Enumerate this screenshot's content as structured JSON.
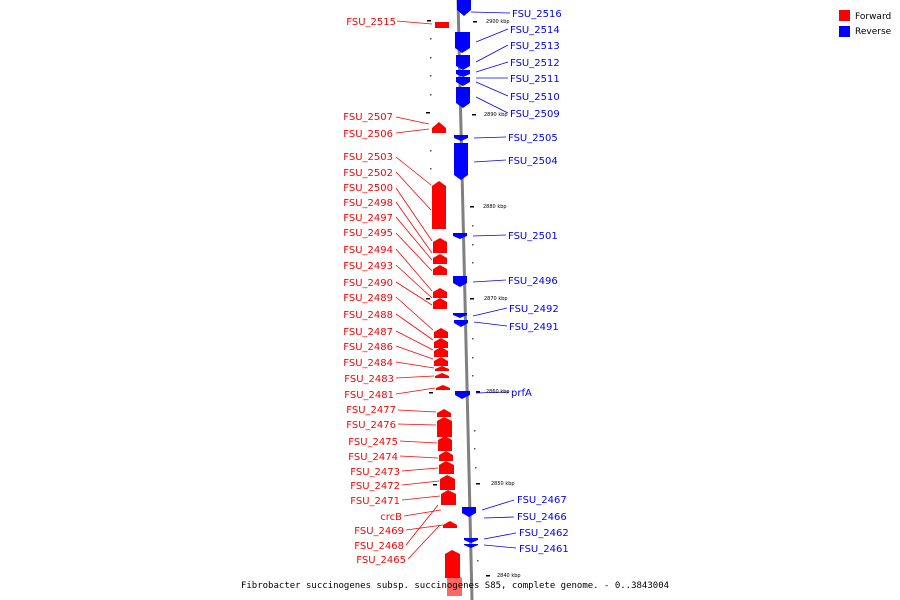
{
  "legend": {
    "forward": {
      "label": "Forward",
      "color": "#ff0000"
    },
    "reverse": {
      "label": "Reverse",
      "color": "#0000ff"
    }
  },
  "colors": {
    "forward": "#ff0000",
    "reverse": "#0000ff",
    "axis": "#808080"
  },
  "caption": "Fibrobacter succinogenes subsp. succinogenes S85, complete genome. - 0..3843004",
  "ticks": [
    "2900 kbp",
    "2890 kbp",
    "2880 kbp",
    "2870 kbp",
    "2860 kbp",
    "2850 kbp",
    "2840 kbp"
  ],
  "forward_labels": [
    "FSU_2515",
    "FSU_2507",
    "FSU_2506",
    "FSU_2503",
    "FSU_2502",
    "FSU_2500",
    "FSU_2498",
    "FSU_2497",
    "FSU_2495",
    "FSU_2494",
    "FSU_2493",
    "FSU_2490",
    "FSU_2489",
    "FSU_2488",
    "FSU_2487",
    "FSU_2486",
    "FSU_2484",
    "FSU_2483",
    "FSU_2481",
    "FSU_2477",
    "FSU_2476",
    "FSU_2475",
    "FSU_2474",
    "FSU_2473",
    "FSU_2472",
    "FSU_2471",
    "crcB",
    "FSU_2469",
    "FSU_2468",
    "FSU_2465"
  ],
  "reverse_labels": [
    "FSU_2516",
    "FSU_2514",
    "FSU_2513",
    "FSU_2512",
    "FSU_2511",
    "FSU_2510",
    "FSU_2509",
    "FSU_2505",
    "FSU_2504",
    "FSU_2501",
    "FSU_2496",
    "FSU_2492",
    "FSU_2491",
    "prfA",
    "FSU_2467",
    "FSU_2466",
    "FSU_2462",
    "FSU_2461"
  ]
}
